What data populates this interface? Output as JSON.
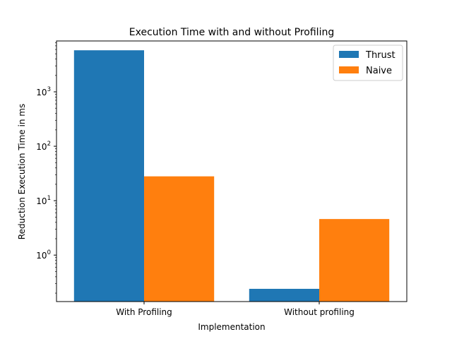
{
  "chart_data": {
    "type": "bar",
    "title": "Execution Time with and without Profiling",
    "xlabel": "Implementation",
    "ylabel": "Reduction Execution Time in ms",
    "yscale": "log",
    "ylim": [
      0.14,
      8600
    ],
    "categories": [
      "With Profiling",
      "Without profiling"
    ],
    "series": [
      {
        "name": "Thrust",
        "values": [
          5800,
          0.24
        ],
        "color": "#1f77b4"
      },
      {
        "name": "Naive",
        "values": [
          28,
          4.6
        ],
        "color": "#ff7f0e"
      }
    ],
    "yticks": [
      {
        "value": 1,
        "base": "10",
        "exp": "0"
      },
      {
        "value": 10,
        "base": "10",
        "exp": "1"
      },
      {
        "value": 100,
        "base": "10",
        "exp": "2"
      },
      {
        "value": 1000,
        "base": "10",
        "exp": "3"
      }
    ],
    "legend": {
      "position": "top-right"
    },
    "grid": false
  }
}
